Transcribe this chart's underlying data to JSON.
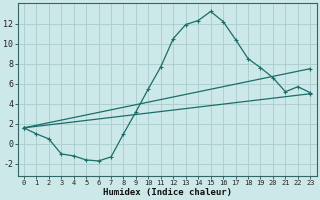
{
  "xlabel": "Humidex (Indice chaleur)",
  "bg_color": "#cce8e8",
  "grid_color": "#aacccc",
  "line_color": "#1a6e6a",
  "xlim": [
    -0.5,
    23.5
  ],
  "ylim": [
    -3.2,
    14.0
  ],
  "xticks": [
    0,
    1,
    2,
    3,
    4,
    5,
    6,
    7,
    8,
    9,
    10,
    11,
    12,
    13,
    14,
    15,
    16,
    17,
    18,
    19,
    20,
    21,
    22,
    23
  ],
  "yticks": [
    -2,
    0,
    2,
    4,
    6,
    8,
    10,
    12
  ],
  "curve1_x": [
    0,
    1,
    2,
    3,
    4,
    5,
    6,
    7,
    8,
    9,
    10,
    11,
    12,
    13,
    14,
    15,
    16,
    17,
    18,
    19,
    20,
    21,
    22,
    23
  ],
  "curve1_y": [
    1.6,
    1.0,
    0.5,
    -1.0,
    -1.2,
    -1.6,
    -1.7,
    -1.3,
    1.0,
    3.2,
    5.5,
    7.7,
    10.5,
    11.9,
    12.3,
    13.2,
    12.2,
    10.4,
    8.5,
    7.6,
    6.6,
    5.2,
    5.7,
    5.1
  ],
  "curve2_x": [
    0,
    23
  ],
  "curve2_y": [
    1.6,
    7.5
  ],
  "curve3_x": [
    0,
    23
  ],
  "curve3_y": [
    1.6,
    5.0
  ],
  "marker": "+"
}
